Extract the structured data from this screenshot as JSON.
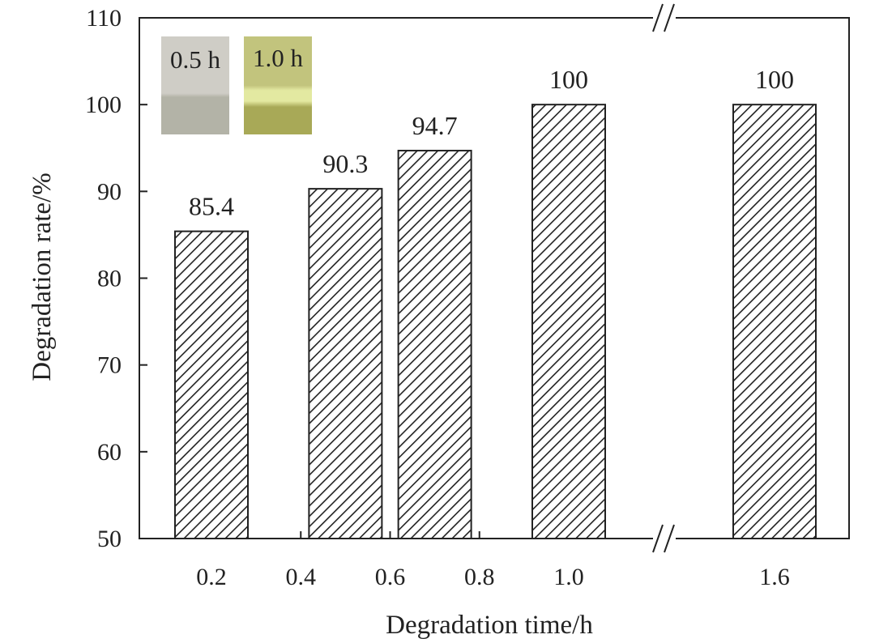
{
  "chart_data": {
    "type": "bar",
    "title": "",
    "xlabel": "Degradation time/h",
    "ylabel": "Degradation rate/%",
    "ylim": [
      50,
      110
    ],
    "yticks": [
      50,
      60,
      70,
      80,
      90,
      100,
      110
    ],
    "xaxis_break": true,
    "xticks": [
      {
        "label": "0.2",
        "value": 0.2
      },
      {
        "label": "0.4",
        "value": 0.4
      },
      {
        "label": "0.6",
        "value": 0.6
      },
      {
        "label": "0.8",
        "value": 0.8
      },
      {
        "label": "1.0",
        "value": 1.0
      },
      {
        "label": "1.6",
        "value": 1.6
      }
    ],
    "bars": [
      {
        "x": 0.2,
        "value": 85.4,
        "label": "85.4"
      },
      {
        "x": 0.5,
        "value": 90.3,
        "label": "90.3"
      },
      {
        "x": 0.7,
        "value": 94.7,
        "label": "94.7"
      },
      {
        "x": 1.0,
        "value": 100,
        "label": "100"
      },
      {
        "x": 1.6,
        "value": 100,
        "label": "100"
      }
    ],
    "bar_fill": "diagonal-hatch",
    "grid": false,
    "legend": "none",
    "insets": [
      {
        "label": "0.5 h",
        "colors": [
          "#cfcdc6",
          "#b3b3a7"
        ]
      },
      {
        "label": "1.0 h",
        "colors": [
          "#c2c47d",
          "#e3e9a1",
          "#a8a957"
        ]
      }
    ]
  }
}
